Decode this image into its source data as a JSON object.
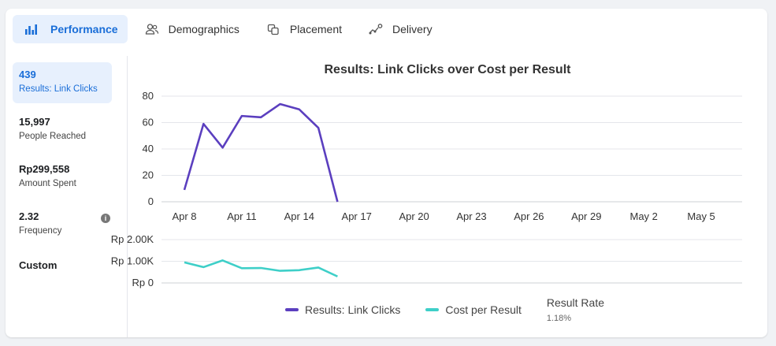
{
  "tabs": [
    {
      "label": "Performance",
      "icon": "bar-chart-icon",
      "active": true
    },
    {
      "label": "Demographics",
      "icon": "people-icon",
      "active": false
    },
    {
      "label": "Placement",
      "icon": "placement-icon",
      "active": false
    },
    {
      "label": "Delivery",
      "icon": "delivery-icon",
      "active": false
    }
  ],
  "metrics": [
    {
      "value": "439",
      "label": "Results: Link Clicks",
      "selected": true
    },
    {
      "value": "15,997",
      "label": "People Reached"
    },
    {
      "value": "Rp299,558",
      "label": "Amount Spent"
    },
    {
      "value": "2.32",
      "label": "Frequency",
      "info_icon": "i"
    },
    {
      "value": "Custom",
      "label": ""
    }
  ],
  "colors": {
    "accent": "#1a6ed8",
    "series1": "#5b3fbf",
    "series2": "#3ecfc8"
  },
  "chart_data": {
    "type": "line",
    "title": "Results: Link Clicks over Cost per Result",
    "x": [
      "Apr 8",
      "Apr 9",
      "Apr 10",
      "Apr 11",
      "Apr 12",
      "Apr 13",
      "Apr 14",
      "Apr 15",
      "Apr 16"
    ],
    "x_ticks": [
      "Apr 8",
      "Apr 11",
      "Apr 14",
      "Apr 17",
      "Apr 20",
      "Apr 23",
      "Apr 26",
      "Apr 29",
      "May 2",
      "May 5"
    ],
    "top_panel": {
      "ylim": [
        0,
        80
      ],
      "y_ticks": [
        "0",
        "20",
        "40",
        "60",
        "80"
      ],
      "series": [
        {
          "name": "Results: Link Clicks",
          "values": [
            9,
            59,
            41,
            65,
            64,
            74,
            70,
            56,
            0
          ]
        }
      ]
    },
    "bottom_panel": {
      "ylim": [
        0,
        2000
      ],
      "y_ticks": [
        "Rp 0",
        "Rp 1.00K",
        "Rp 2.00K"
      ],
      "series": [
        {
          "name": "Cost per Result",
          "values": [
            950,
            730,
            1040,
            680,
            690,
            560,
            590,
            710,
            300
          ]
        }
      ]
    },
    "grid": true
  },
  "legend": {
    "items": [
      {
        "label": "Results: Link Clicks"
      },
      {
        "label": "Cost per Result"
      }
    ],
    "result_rate_label": "Result Rate",
    "result_rate_value": "1.18%"
  }
}
